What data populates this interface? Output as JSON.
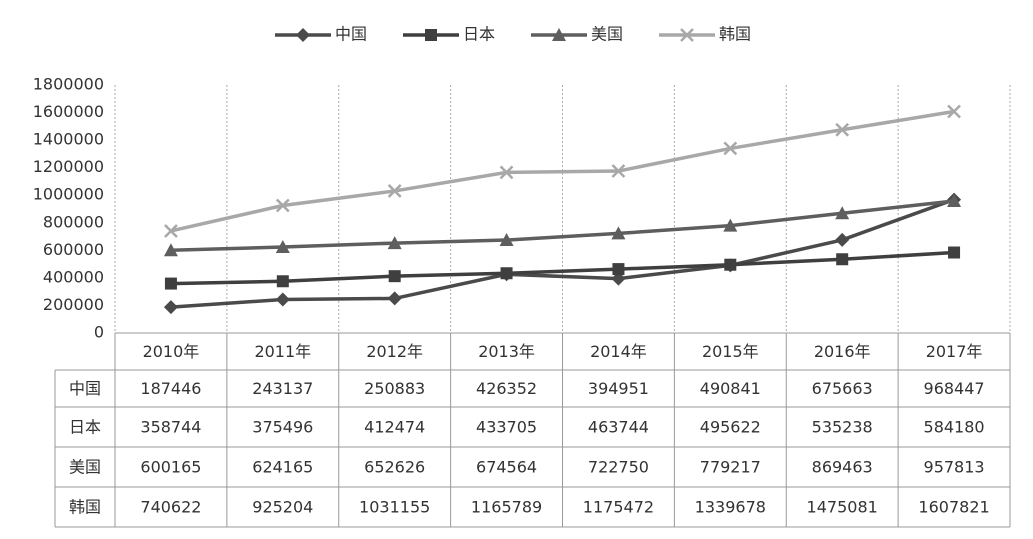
{
  "chart_data": {
    "type": "line",
    "categories": [
      "2010年",
      "2011年",
      "2012年",
      "2013年",
      "2014年",
      "2015年",
      "2016年",
      "2017年"
    ],
    "series": [
      {
        "name": "中国",
        "color": "#4a4a4a",
        "marker": "diamond",
        "values": [
          187446,
          243137,
          250883,
          426352,
          394951,
          490841,
          675663,
          968447
        ]
      },
      {
        "name": "日本",
        "color": "#3f3f3f",
        "marker": "square",
        "values": [
          358744,
          375496,
          412474,
          433705,
          463744,
          495622,
          535238,
          584180
        ]
      },
      {
        "name": "美国",
        "color": "#5e5e5e",
        "marker": "triangle",
        "values": [
          600165,
          624165,
          652626,
          674564,
          722750,
          779217,
          869463,
          957813
        ]
      },
      {
        "name": "韩国",
        "color": "#a8a8a8",
        "marker": "x",
        "values": [
          740622,
          925204,
          1031155,
          1165789,
          1175472,
          1339678,
          1475081,
          1607821
        ]
      }
    ],
    "ylim": [
      0,
      1800000
    ],
    "yticks": [
      0,
      200000,
      400000,
      600000,
      800000,
      1000000,
      1200000,
      1400000,
      1600000,
      1800000
    ],
    "legend": "top"
  }
}
